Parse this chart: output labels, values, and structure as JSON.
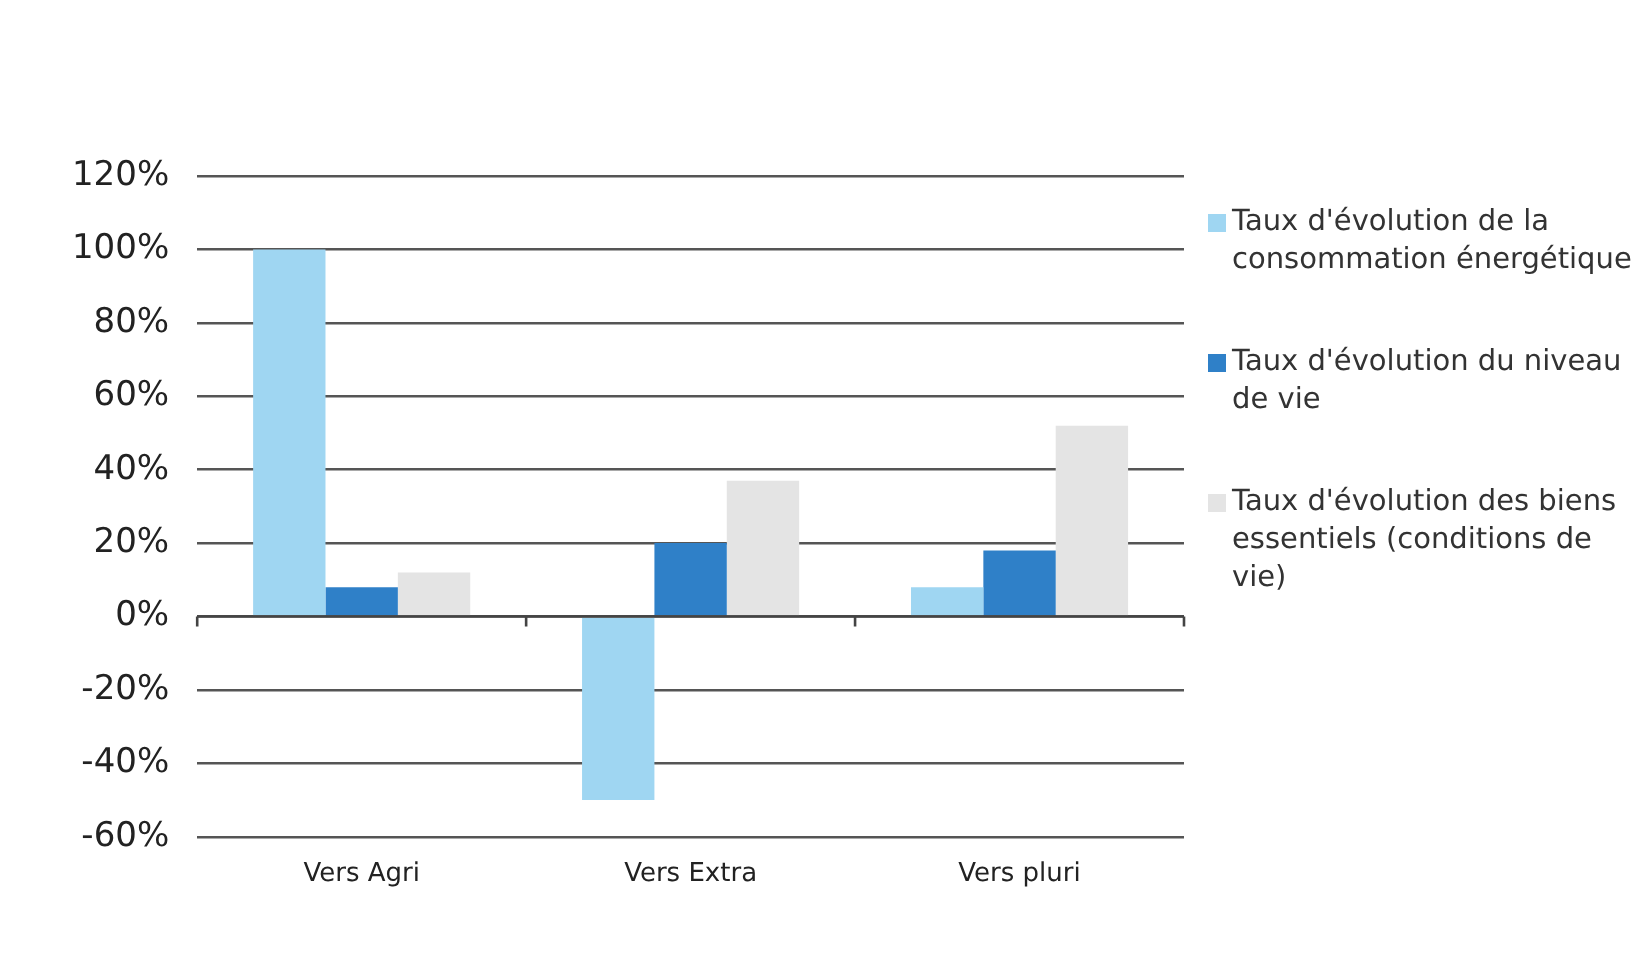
{
  "chart_data": {
    "type": "bar",
    "categories": [
      "Vers Agri",
      "Vers Extra",
      "Vers pluri"
    ],
    "series": [
      {
        "name": "Taux d'évolution de la consommation énergétique",
        "color": "#9fd6f2",
        "values": [
          100,
          -50,
          8
        ]
      },
      {
        "name": "Taux d'évolution du niveau de vie",
        "color": "#2f80c8",
        "values": [
          8,
          20,
          18
        ]
      },
      {
        "name": "Taux d'évolution des biens essentiels (conditions de vie)",
        "color": "#e4e4e4",
        "values": [
          12,
          37,
          52
        ]
      }
    ],
    "ylim": [
      -60,
      120
    ],
    "yticks": [
      {
        "value": -60,
        "label": "-60%"
      },
      {
        "value": -40,
        "label": "-40%"
      },
      {
        "value": -20,
        "label": "-20%"
      },
      {
        "value": 0,
        "label": "0%"
      },
      {
        "value": 20,
        "label": "20%"
      },
      {
        "value": 40,
        "label": "40%"
      },
      {
        "value": 60,
        "label": "60%"
      },
      {
        "value": 80,
        "label": "80%"
      },
      {
        "value": 100,
        "label": "100%"
      },
      {
        "value": 120,
        "label": "120%"
      }
    ],
    "grid": "y",
    "legend": "right"
  }
}
